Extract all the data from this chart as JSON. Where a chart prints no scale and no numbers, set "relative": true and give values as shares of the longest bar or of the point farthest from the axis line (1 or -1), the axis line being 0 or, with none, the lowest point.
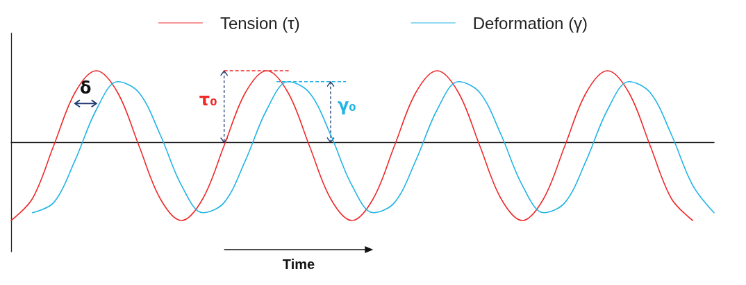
{
  "chart_data": {
    "type": "line",
    "relative": true,
    "xlabel": "Time",
    "categories": [
      null,
      null,
      null,
      null,
      null,
      null,
      null,
      null,
      null,
      null,
      null,
      null,
      null,
      null,
      null,
      null,
      null,
      null,
      null,
      null,
      null,
      null,
      null,
      null,
      null,
      null,
      null,
      null,
      null,
      null,
      null,
      null,
      null,
      null
    ],
    "series": [
      {
        "name": "Tension (τ)",
        "color": "#ee2a2a",
        "values": [
          -1,
          -0.72,
          -0.04,
          0.64,
          0.92,
          0.64,
          -0.04,
          -0.72,
          -1,
          -0.72,
          -0.04,
          0.64,
          0.92,
          0.64,
          -0.04,
          -0.72,
          -1,
          -0.72,
          -0.04,
          0.64,
          0.92,
          0.64,
          -0.04,
          -0.72,
          -1,
          -0.72,
          -0.04,
          0.64,
          0.92,
          0.64,
          -0.04,
          -0.72,
          -1,
          null
        ]
      },
      {
        "name": "Deformation (γ)",
        "color": "#21b4e6",
        "values": [
          null,
          -0.9,
          -0.77,
          -0.23,
          0.42,
          0.78,
          0.64,
          0.1,
          -0.55,
          -0.9,
          -0.77,
          -0.23,
          0.42,
          0.78,
          0.64,
          0.1,
          -0.55,
          -0.9,
          -0.77,
          -0.23,
          0.42,
          0.78,
          0.64,
          0.1,
          -0.55,
          -0.9,
          -0.77,
          -0.23,
          0.42,
          0.78,
          0.64,
          0.1,
          -0.55,
          -0.9
        ]
      }
    ],
    "annotations": [
      "δ",
      "τ₀",
      "γ₀"
    ],
    "legend": "top",
    "grid": false,
    "marker": "none",
    "line_style": "solid"
  }
}
